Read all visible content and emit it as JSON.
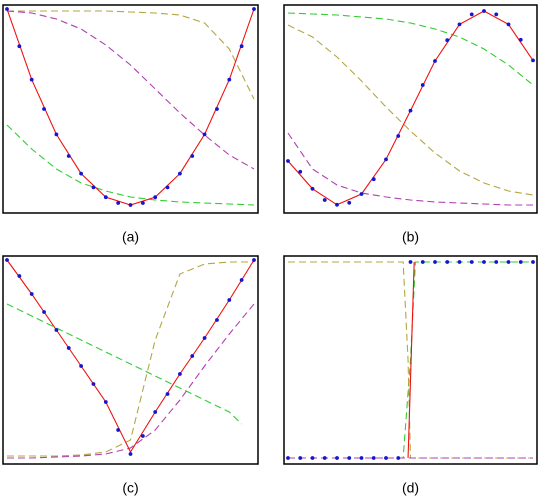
{
  "chart_data": [
    {
      "type": "line",
      "caption": "(a)",
      "xlim": [
        0,
        1
      ],
      "ylim": [
        0,
        1
      ],
      "series": [
        {
          "color": "#33cc33",
          "style": "dashed",
          "x": [
            0,
            0.1,
            0.2,
            0.3,
            0.4,
            0.5,
            0.6,
            0.7,
            0.8,
            0.9,
            1
          ],
          "values": [
            0.42,
            0.3,
            0.2,
            0.13,
            0.09,
            0.06,
            0.045,
            0.035,
            0.03,
            0.025,
            0.02
          ]
        },
        {
          "color": "#b5a642",
          "style": "dashed",
          "x": [
            0,
            0.1,
            0.2,
            0.3,
            0.4,
            0.5,
            0.6,
            0.7,
            0.8,
            0.9,
            1
          ],
          "values": [
            0.99,
            0.99,
            0.99,
            0.99,
            0.99,
            0.985,
            0.98,
            0.97,
            0.93,
            0.8,
            0.55
          ]
        },
        {
          "color": "#b040b0",
          "style": "dashed",
          "x": [
            0,
            0.1,
            0.2,
            0.3,
            0.4,
            0.5,
            0.6,
            0.7,
            0.8,
            0.9,
            1
          ],
          "values": [
            0.99,
            0.98,
            0.95,
            0.9,
            0.82,
            0.72,
            0.6,
            0.48,
            0.37,
            0.27,
            0.2
          ]
        },
        {
          "color": "#ee1111",
          "style": "solid",
          "x": [
            0,
            0.1,
            0.2,
            0.3,
            0.4,
            0.5,
            0.6,
            0.7,
            0.8,
            0.9,
            1
          ],
          "values": [
            1.0,
            0.647,
            0.373,
            0.177,
            0.059,
            0.02,
            0.059,
            0.177,
            0.373,
            0.647,
            1.0
          ]
        },
        {
          "color": "#1515d0",
          "style": "dots",
          "x": [
            0,
            0.05,
            0.1,
            0.15,
            0.2,
            0.25,
            0.3,
            0.35,
            0.4,
            0.45,
            0.5,
            0.55,
            0.6,
            0.65,
            0.7,
            0.75,
            0.8,
            0.85,
            0.9,
            0.95,
            1
          ],
          "values": [
            1.0,
            0.814,
            0.647,
            0.5,
            0.373,
            0.265,
            0.177,
            0.108,
            0.059,
            0.03,
            0.02,
            0.03,
            0.059,
            0.108,
            0.177,
            0.265,
            0.373,
            0.5,
            0.647,
            0.814,
            1.0
          ]
        }
      ]
    },
    {
      "type": "line",
      "caption": "(b)",
      "xlim": [
        0,
        1
      ],
      "ylim": [
        0,
        1
      ],
      "series": [
        {
          "color": "#33cc33",
          "style": "dashed",
          "x": [
            0,
            0.1,
            0.2,
            0.3,
            0.4,
            0.5,
            0.6,
            0.7,
            0.8,
            0.9,
            1
          ],
          "values": [
            0.98,
            0.975,
            0.97,
            0.96,
            0.95,
            0.93,
            0.9,
            0.86,
            0.8,
            0.72,
            0.62
          ]
        },
        {
          "color": "#b5a642",
          "style": "dashed",
          "x": [
            0,
            0.1,
            0.2,
            0.3,
            0.4,
            0.5,
            0.6,
            0.7,
            0.8,
            0.9,
            1
          ],
          "values": [
            0.92,
            0.86,
            0.76,
            0.64,
            0.51,
            0.39,
            0.28,
            0.19,
            0.13,
            0.09,
            0.07
          ]
        },
        {
          "color": "#b040b0",
          "style": "dashed",
          "x": [
            0,
            0.1,
            0.2,
            0.3,
            0.4,
            0.5,
            0.6,
            0.7,
            0.8,
            0.9,
            1
          ],
          "values": [
            0.38,
            0.2,
            0.12,
            0.08,
            0.06,
            0.045,
            0.035,
            0.03,
            0.025,
            0.02,
            0.02
          ]
        },
        {
          "color": "#ee1111",
          "style": "solid",
          "x": [
            0,
            0.1,
            0.2,
            0.3,
            0.4,
            0.5,
            0.6,
            0.7,
            0.8,
            0.9,
            1
          ],
          "values": [
            0.24,
            0.101,
            0.021,
            0.075,
            0.248,
            0.492,
            0.74,
            0.923,
            0.99,
            0.923,
            0.743
          ]
        },
        {
          "color": "#1515d0",
          "style": "dots",
          "x": [
            0,
            0.05,
            0.1,
            0.15,
            0.2,
            0.25,
            0.3,
            0.35,
            0.4,
            0.45,
            0.5,
            0.55,
            0.6,
            0.65,
            0.7,
            0.75,
            0.8,
            0.85,
            0.9,
            0.95,
            1
          ],
          "values": [
            0.24,
            0.186,
            0.101,
            0.045,
            0.021,
            0.031,
            0.075,
            0.149,
            0.248,
            0.365,
            0.492,
            0.62,
            0.74,
            0.844,
            0.923,
            0.973,
            0.99,
            0.973,
            0.923,
            0.846,
            0.743
          ]
        }
      ]
    },
    {
      "type": "line",
      "caption": "(c)",
      "xlim": [
        0,
        1
      ],
      "ylim": [
        0,
        1
      ],
      "series": [
        {
          "color": "#33cc33",
          "style": "dashed",
          "x": [
            0,
            0.1,
            0.2,
            0.3,
            0.4,
            0.5,
            0.6,
            0.7,
            0.8,
            0.9,
            0.95
          ],
          "values": [
            0.78,
            0.72,
            0.66,
            0.6,
            0.54,
            0.48,
            0.42,
            0.36,
            0.3,
            0.24,
            0.18
          ]
        },
        {
          "color": "#b5a642",
          "style": "dashed",
          "x": [
            0,
            0.1,
            0.2,
            0.3,
            0.4,
            0.5,
            0.6,
            0.7,
            0.8,
            0.9,
            1
          ],
          "values": [
            0.02,
            0.02,
            0.02,
            0.025,
            0.04,
            0.1,
            0.6,
            0.93,
            0.98,
            0.99,
            0.99
          ]
        },
        {
          "color": "#b040b0",
          "style": "dashed",
          "x": [
            0,
            0.1,
            0.2,
            0.3,
            0.4,
            0.5,
            0.6,
            0.7,
            0.8,
            0.9,
            1
          ],
          "values": [
            0.01,
            0.01,
            0.015,
            0.02,
            0.03,
            0.06,
            0.15,
            0.3,
            0.47,
            0.63,
            0.78
          ]
        },
        {
          "color": "#ee1111",
          "style": "solid",
          "x": [
            0,
            0.1,
            0.2,
            0.3,
            0.4,
            0.5,
            0.6,
            0.7,
            0.8,
            0.9,
            1
          ],
          "values": [
            1,
            0.83,
            0.65,
            0.47,
            0.29,
            0.04,
            0.24,
            0.43,
            0.61,
            0.8,
            1
          ]
        },
        {
          "color": "#1515d0",
          "style": "dots",
          "x": [
            0,
            0.05,
            0.1,
            0.15,
            0.2,
            0.25,
            0.3,
            0.35,
            0.4,
            0.45,
            0.5,
            0.55,
            0.6,
            0.65,
            0.7,
            0.75,
            0.8,
            0.85,
            0.9,
            0.95,
            1
          ],
          "values": [
            1,
            0.92,
            0.83,
            0.74,
            0.65,
            0.56,
            0.47,
            0.38,
            0.29,
            0.15,
            0.03,
            0.12,
            0.24,
            0.33,
            0.43,
            0.52,
            0.61,
            0.7,
            0.8,
            0.9,
            1
          ]
        }
      ]
    },
    {
      "type": "line",
      "caption": "(d)",
      "xlim": [
        0,
        1
      ],
      "ylim": [
        0,
        1
      ],
      "series": [
        {
          "color": "#33cc33",
          "style": "dashed",
          "x": [
            0,
            0.47,
            0.5,
            0.52,
            1
          ],
          "values": [
            0.01,
            0.01,
            0.5,
            0.99,
            0.99
          ]
        },
        {
          "color": "#b5a642",
          "style": "dashed",
          "x": [
            0,
            0.47,
            0.49,
            0.5,
            1
          ],
          "values": [
            0.99,
            0.99,
            0.5,
            0.01,
            0.01
          ]
        },
        {
          "color": "#b040b0",
          "style": "dashed",
          "x": [
            0,
            1
          ],
          "values": [
            0.01,
            0.01
          ]
        },
        {
          "color": "#ee1111",
          "style": "solid",
          "x": [
            0.49,
            0.515
          ],
          "values": [
            0.01,
            0.99
          ]
        },
        {
          "color": "#1515d0",
          "style": "dots",
          "x": [
            0,
            0.05,
            0.1,
            0.15,
            0.2,
            0.25,
            0.3,
            0.35,
            0.4,
            0.45,
            0.5,
            0.55,
            0.6,
            0.65,
            0.7,
            0.75,
            0.8,
            0.85,
            0.9,
            0.95,
            1
          ],
          "values": [
            0.01,
            0.01,
            0.01,
            0.01,
            0.01,
            0.01,
            0.01,
            0.01,
            0.01,
            0.01,
            0.99,
            0.99,
            0.99,
            0.99,
            0.99,
            0.99,
            0.99,
            0.99,
            0.99,
            0.99,
            0.99
          ]
        }
      ]
    }
  ]
}
